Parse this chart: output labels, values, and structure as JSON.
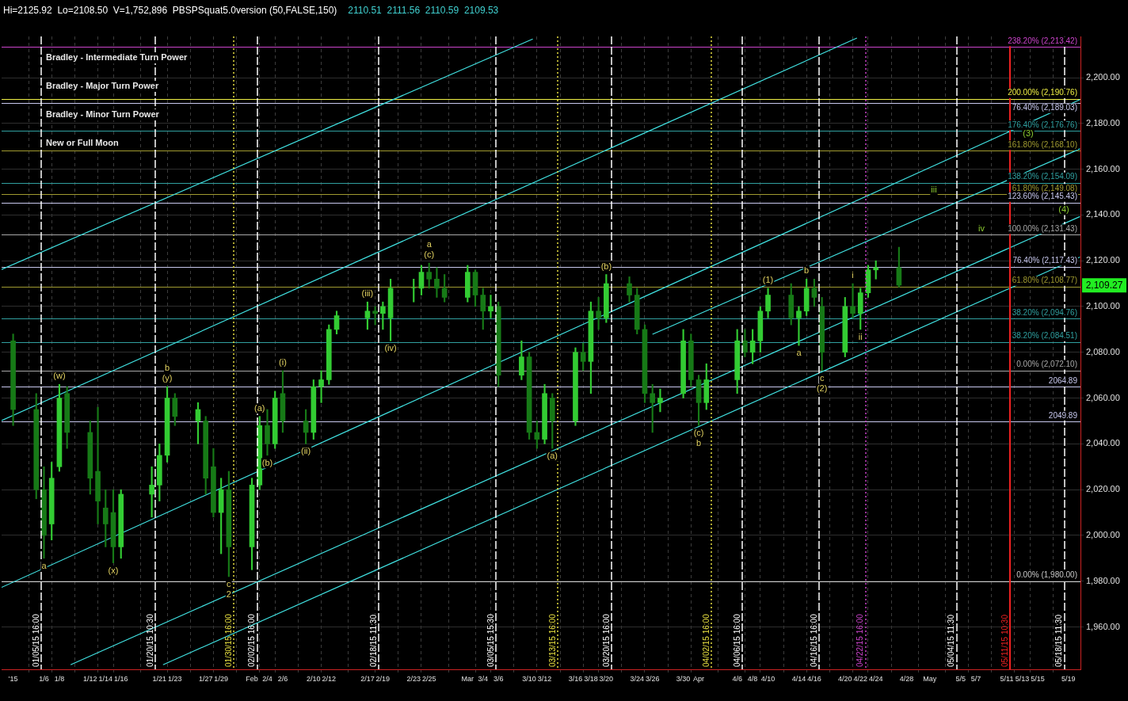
{
  "chart_data": {
    "type": "candlestick",
    "title": "Hi=2125.92  Lo=2108.50  V=1,752,896  PBSPSquat5.0version (50,FALSE,150)",
    "subtitle": "2110.51  2111.56  2110.59  2109.53",
    "xlim": [
      "2014-12-31T12:00",
      "2015-05-20T13:30"
    ],
    "xticks": [
      {
        "value": "2015-01-02",
        "label": "'15"
      },
      {
        "value": "2015-01-06",
        "label": "1/6"
      },
      {
        "value": "2015-01-08",
        "label": "1/8"
      },
      {
        "value": "2015-01-12",
        "label": "1/12"
      },
      {
        "value": "2015-01-14",
        "label": "1/14"
      },
      {
        "value": "2015-01-16",
        "label": "1/16"
      },
      {
        "value": "2015-01-21",
        "label": "1/21"
      },
      {
        "value": "2015-01-23",
        "label": "1/23"
      },
      {
        "value": "2015-01-27",
        "label": "1/27"
      },
      {
        "value": "2015-01-29",
        "label": "1/29"
      },
      {
        "value": "2015-02-02",
        "label": "Feb"
      },
      {
        "value": "2015-02-04",
        "label": "2/4"
      },
      {
        "value": "2015-02-06",
        "label": "2/6"
      },
      {
        "value": "2015-02-10",
        "label": "2/10"
      },
      {
        "value": "2015-02-12",
        "label": "2/12"
      },
      {
        "value": "2015-02-17",
        "label": "2/17"
      },
      {
        "value": "2015-02-19",
        "label": "2/19"
      },
      {
        "value": "2015-02-23",
        "label": "2/23"
      },
      {
        "value": "2015-02-25",
        "label": "2/25"
      },
      {
        "value": "2015-03-02",
        "label": "Mar"
      },
      {
        "value": "2015-03-04",
        "label": "3/4"
      },
      {
        "value": "2015-03-06",
        "label": "3/6"
      },
      {
        "value": "2015-03-10",
        "label": "3/10"
      },
      {
        "value": "2015-03-12",
        "label": "3/12"
      },
      {
        "value": "2015-03-16",
        "label": "3/16"
      },
      {
        "value": "2015-03-18",
        "label": "3/18"
      },
      {
        "value": "2015-03-20",
        "label": "3/20"
      },
      {
        "value": "2015-03-24",
        "label": "3/24"
      },
      {
        "value": "2015-03-26",
        "label": "3/26"
      },
      {
        "value": "2015-03-30",
        "label": "3/30"
      },
      {
        "value": "2015-04-01",
        "label": "Apr"
      },
      {
        "value": "2015-04-06",
        "label": "4/6"
      },
      {
        "value": "2015-04-08",
        "label": "4/8"
      },
      {
        "value": "2015-04-10",
        "label": "4/10"
      },
      {
        "value": "2015-04-14",
        "label": "4/14"
      },
      {
        "value": "2015-04-16",
        "label": "4/16"
      },
      {
        "value": "2015-04-20",
        "label": "4/20"
      },
      {
        "value": "2015-04-22",
        "label": "4/22"
      },
      {
        "value": "2015-04-24",
        "label": "4/24"
      },
      {
        "value": "2015-04-28",
        "label": "4/28"
      },
      {
        "value": "2015-05-01",
        "label": "May"
      },
      {
        "value": "2015-05-05",
        "label": "5/5"
      },
      {
        "value": "2015-05-07",
        "label": "5/7"
      },
      {
        "value": "2015-05-11",
        "label": "5/11"
      },
      {
        "value": "2015-05-13",
        "label": "5/13"
      },
      {
        "value": "2015-05-15",
        "label": "5/15"
      },
      {
        "value": "2015-05-19",
        "label": "5/19"
      }
    ],
    "ylim": [
      1941.5,
      2218
    ],
    "yticks": [
      {
        "value": 1960,
        "label": "1,960.00"
      },
      {
        "value": 1980,
        "label": "1,980.00"
      },
      {
        "value": 2000,
        "label": "2,000.00"
      },
      {
        "value": 2020,
        "label": "2,020.00"
      },
      {
        "value": 2040,
        "label": "2,040.00"
      },
      {
        "value": 2060,
        "label": "2,060.00"
      },
      {
        "value": 2080,
        "label": "2,080.00"
      },
      {
        "value": 2100,
        "label": "2,100.00"
      },
      {
        "value": 2120,
        "label": "2,120.00"
      },
      {
        "value": 2140,
        "label": "2,140.00"
      },
      {
        "value": 2160,
        "label": "2,160.00"
      },
      {
        "value": 2180,
        "label": "2,180.00"
      },
      {
        "value": 2200,
        "label": "2,200.00"
      }
    ],
    "grid": true,
    "series": [
      {
        "type": "line",
        "color": "#40e0e0",
        "x": [
          "2014-12-31T12:00",
          "2015-03-10T11:00"
        ],
        "values": [
          2116.2,
          2216.9
        ]
      },
      {
        "type": "line",
        "color": "#40e0e0",
        "x": [
          "2014-12-31T12:00",
          "2015-04-21T13:00"
        ],
        "values": [
          2050.2,
          2217.3
        ]
      },
      {
        "type": "line",
        "color": "#40e0e0",
        "x": [
          "2014-12-31T12:00",
          "2015-05-20T12:00"
        ],
        "values": [
          1977.3,
          2190.4
        ]
      },
      {
        "type": "line",
        "color": "#40e0e0",
        "x": [
          "2015-03-26",
          "2015-05-20T12:00"
        ],
        "values": [
          2087.9,
          2168.9
        ]
      },
      {
        "type": "line",
        "color": "#40e0e0",
        "x": [
          "2015-01-09T11:00",
          "2015-05-20T12:00"
        ],
        "values": [
          1943.5,
          2139.3
        ]
      },
      {
        "type": "line",
        "color": "#40e0e0",
        "x": [
          "2015-01-21T11:00",
          "2015-05-20T12:00"
        ],
        "values": [
          1943.5,
          2121.6
        ]
      },
      {
        "color": "#33cc33",
        "colors": [
          "#177a17",
          "#177a17",
          "#177a17",
          "#33cc33",
          "#33cc33",
          "#177a17",
          "#177a17",
          "#177a17",
          "#177a17",
          "#177a17",
          "#33cc33",
          "#33cc33",
          "#33cc33",
          "#33cc33",
          "#177a17",
          "#33cc33",
          "#177a17",
          "#177a17",
          "#33cc33",
          "#177a17",
          "#33cc33",
          "#33cc33",
          "#177a17",
          "#33cc33",
          "#177a17",
          "#177a17",
          "#33cc33",
          "#33cc33",
          "#33cc33",
          "#33cc33",
          "#33cc33",
          "#177a17",
          "#33cc33",
          "#33cc33",
          "#33cc33",
          "#33cc33",
          "#177a17",
          "#177a17",
          "#177a17",
          "#33cc33",
          "#177a17",
          "#177a17",
          "#33cc33",
          "#177a17",
          "#33cc33",
          "#177a17",
          "#177a17",
          "#33cc33",
          "#177a17",
          "#33cc33",
          "#177a17",
          "#33cc33",
          "#177a17",
          "#33cc33",
          "#177a17",
          "#177a17",
          "#177a17",
          "#177a17",
          "#33cc33",
          "#33cc33",
          "#177a17",
          "#177a17",
          "#33cc33",
          "#33cc33",
          "#177a17",
          "#33cc33",
          "#33cc33",
          "#33cc33",
          "#177a17",
          "#33cc33",
          "#33cc33",
          "#177a17",
          "#177a17",
          "#33cc33",
          "#177a17",
          "#33cc33",
          "#33cc33",
          "#33cc33",
          "#177a17"
        ],
        "x": [
          "2015-01-02",
          "2015-01-05",
          "2015-01-06",
          "2015-01-07",
          "2015-01-08",
          "2015-01-09",
          "2015-01-12",
          "2015-01-13",
          "2015-01-14",
          "2015-01-15",
          "2015-01-16",
          "2015-01-20",
          "2015-01-21",
          "2015-01-22",
          "2015-01-23",
          "2015-01-26",
          "2015-01-27",
          "2015-01-28",
          "2015-01-29",
          "2015-01-30",
          "2015-02-02",
          "2015-02-03",
          "2015-02-04",
          "2015-02-05",
          "2015-02-06",
          "2015-02-09",
          "2015-02-10",
          "2015-02-11",
          "2015-02-12",
          "2015-02-13",
          "2015-02-17",
          "2015-02-18",
          "2015-02-19",
          "2015-02-20",
          "2015-02-23",
          "2015-02-24",
          "2015-02-25",
          "2015-02-26",
          "2015-02-27",
          "2015-03-02",
          "2015-03-03",
          "2015-03-04",
          "2015-03-05",
          "2015-03-06",
          "2015-03-09",
          "2015-03-10",
          "2015-03-11",
          "2015-03-12",
          "2015-03-13",
          "2015-03-16",
          "2015-03-17",
          "2015-03-18",
          "2015-03-19",
          "2015-03-20",
          "2015-03-23",
          "2015-03-24",
          "2015-03-25",
          "2015-03-26",
          "2015-03-27",
          "2015-03-30",
          "2015-03-31",
          "2015-04-01",
          "2015-04-02",
          "2015-04-06",
          "2015-04-07",
          "2015-04-08",
          "2015-04-09",
          "2015-04-10",
          "2015-04-13",
          "2015-04-14",
          "2015-04-15",
          "2015-04-16",
          "2015-04-17",
          "2015-04-20",
          "2015-04-21",
          "2015-04-22",
          "2015-04-23",
          "2015-04-24",
          "2015-04-27"
        ],
        "ohlc": [
          [
            2085,
            2088,
            2048,
            2055
          ],
          [
            2055,
            2062,
            2016,
            2020
          ],
          [
            2020,
            2030,
            1990,
            2000
          ],
          [
            2005,
            2032,
            1998,
            2025
          ],
          [
            2030,
            2066,
            2028,
            2060
          ],
          [
            2062,
            2065,
            2038,
            2045
          ],
          [
            2045,
            2050,
            2018,
            2025
          ],
          [
            2028,
            2056,
            2005,
            2015
          ],
          [
            2012,
            2020,
            1995,
            2005
          ],
          [
            2010,
            2020,
            1988,
            1995
          ],
          [
            1995,
            2020,
            1990,
            2018
          ],
          [
            2018,
            2030,
            2008,
            2022
          ],
          [
            2022,
            2040,
            2015,
            2035
          ],
          [
            2035,
            2065,
            2032,
            2060
          ],
          [
            2060,
            2062,
            2048,
            2052
          ],
          [
            2050,
            2058,
            2040,
            2055
          ],
          [
            2050,
            2052,
            2018,
            2025
          ],
          [
            2030,
            2038,
            2008,
            2010
          ],
          [
            2010,
            2025,
            1992,
            2020
          ],
          [
            2020,
            2028,
            1982,
            1995
          ],
          [
            1995,
            2025,
            1985,
            2022
          ],
          [
            2022,
            2052,
            2020,
            2048
          ],
          [
            2048,
            2055,
            2035,
            2040
          ],
          [
            2040,
            2063,
            2038,
            2060
          ],
          [
            2062,
            2072,
            2045,
            2050
          ],
          [
            2050,
            2055,
            2040,
            2045
          ],
          [
            2045,
            2068,
            2042,
            2065
          ],
          [
            2065,
            2072,
            2058,
            2068
          ],
          [
            2068,
            2092,
            2066,
            2090
          ],
          [
            2090,
            2098,
            2088,
            2096
          ],
          [
            2095,
            2102,
            2090,
            2098
          ],
          [
            2098,
            2100,
            2092,
            2097
          ],
          [
            2097,
            2102,
            2090,
            2100
          ],
          [
            2095,
            2112,
            2085,
            2108
          ],
          [
            2108,
            2112,
            2102,
            2108
          ],
          [
            2108,
            2118,
            2105,
            2115
          ],
          [
            2115,
            2119,
            2108,
            2112
          ],
          [
            2112,
            2117,
            2104,
            2108
          ],
          [
            2108,
            2114,
            2102,
            2104
          ],
          [
            2104,
            2118,
            2102,
            2115
          ],
          [
            2115,
            2116,
            2100,
            2105
          ],
          [
            2105,
            2108,
            2090,
            2098
          ],
          [
            2098,
            2105,
            2095,
            2100
          ],
          [
            2100,
            2102,
            2065,
            2070
          ],
          [
            2070,
            2085,
            2068,
            2078
          ],
          [
            2078,
            2080,
            2042,
            2045
          ],
          [
            2045,
            2050,
            2038,
            2042
          ],
          [
            2042,
            2066,
            2040,
            2062
          ],
          [
            2060,
            2062,
            2038,
            2050
          ],
          [
            2050,
            2082,
            2048,
            2080
          ],
          [
            2080,
            2084,
            2072,
            2076
          ],
          [
            2076,
            2102,
            2062,
            2098
          ],
          [
            2098,
            2104,
            2090,
            2095
          ],
          [
            2095,
            2114,
            2093,
            2110
          ],
          [
            2110,
            2113,
            2102,
            2105
          ],
          [
            2105,
            2108,
            2088,
            2090
          ],
          [
            2090,
            2092,
            2058,
            2062
          ],
          [
            2062,
            2066,
            2045,
            2058
          ],
          [
            2058,
            2064,
            2054,
            2060
          ],
          [
            2062,
            2090,
            2060,
            2085
          ],
          [
            2085,
            2088,
            2065,
            2068
          ],
          [
            2068,
            2070,
            2048,
            2058
          ],
          [
            2058,
            2075,
            2055,
            2068
          ],
          [
            2068,
            2090,
            2062,
            2085
          ],
          [
            2085,
            2090,
            2078,
            2080
          ],
          [
            2080,
            2090,
            2075,
            2085
          ],
          [
            2085,
            2100,
            2080,
            2098
          ],
          [
            2098,
            2108,
            2095,
            2105
          ],
          [
            2105,
            2110,
            2092,
            2095
          ],
          [
            2095,
            2100,
            2083,
            2098
          ],
          [
            2098,
            2112,
            2096,
            2108
          ],
          [
            2108,
            2112,
            2100,
            2104
          ],
          [
            2100,
            2104,
            2072,
            2080
          ],
          [
            2080,
            2104,
            2078,
            2100
          ],
          [
            2100,
            2110,
            2095,
            2097
          ],
          [
            2097,
            2108,
            2090,
            2106
          ],
          [
            2106,
            2118,
            2104,
            2116
          ],
          [
            2116,
            2120,
            2112,
            2117
          ],
          [
            2117,
            2125.92,
            2108.5,
            2109.27
          ]
        ]
      }
    ],
    "ref_lines": [
      {
        "axis": "x",
        "value": "2015-01-05T16:00",
        "label": "01/05/15 16:00",
        "color": "#ffffff",
        "line_style": "dashed"
      },
      {
        "axis": "x",
        "value": "2015-01-20T10:30",
        "label": "01/20/15 10:30",
        "color": "#ffffff",
        "line_style": "dashed"
      },
      {
        "axis": "x",
        "value": "2015-01-30T16:00",
        "label": "01/30/15 16:00",
        "color": "#e8e040",
        "line_style": "dotted"
      },
      {
        "axis": "x",
        "value": "2015-02-02T16:00",
        "label": "02/02/15 16:00",
        "color": "#ffffff",
        "line_style": "dashed"
      },
      {
        "axis": "x",
        "value": "2015-02-18T11:30",
        "label": "02/18/15 11:30",
        "color": "#ffffff",
        "line_style": "dashed"
      },
      {
        "axis": "x",
        "value": "2015-03-05T15:30",
        "label": "03/05/15 15:30",
        "color": "#ffffff",
        "line_style": "dashed"
      },
      {
        "axis": "x",
        "value": "2015-03-13T16:00",
        "label": "03/13/15 16:00",
        "color": "#e8e040",
        "line_style": "dotted"
      },
      {
        "axis": "x",
        "value": "2015-03-20T16:00",
        "label": "03/20/15 16:00",
        "color": "#ffffff",
        "line_style": "dashed"
      },
      {
        "axis": "x",
        "value": "2015-04-02T16:00",
        "label": "04/02/15 16:00",
        "color": "#e8e040",
        "line_style": "dotted"
      },
      {
        "axis": "x",
        "value": "2015-04-06T16:00",
        "label": "04/06/15 16:00",
        "color": "#ffffff",
        "line_style": "dashed"
      },
      {
        "axis": "x",
        "value": "2015-04-16T16:00",
        "label": "04/16/15 16:00",
        "color": "#ffffff",
        "line_style": "dashed"
      },
      {
        "axis": "x",
        "value": "2015-04-22T16:00",
        "label": "04/22/15 16:00",
        "color": "#cc44cc",
        "line_style": "dotted"
      },
      {
        "axis": "x",
        "value": "2015-05-04T11:30",
        "label": "05/04/15 11:30",
        "color": "#ffffff",
        "line_style": "dashed"
      },
      {
        "axis": "x",
        "value": "2015-05-11T10:30",
        "label": "05/11/15 10:30",
        "color": "#ee2222",
        "line_style": "solid"
      },
      {
        "axis": "x",
        "value": "2015-05-18T11:30",
        "label": "05/18/15 11:30",
        "color": "#ffffff",
        "line_style": "dashed"
      },
      {
        "axis": "y",
        "value": 2213.42,
        "label": "238.20% (2,213.42)",
        "color": "#cc44cc"
      },
      {
        "axis": "y",
        "value": 2190.76,
        "label": "200.00% (2,190.76)",
        "color": "#eeee44"
      },
      {
        "axis": "y",
        "value": 2189.03,
        "label": "76.40% (2,189.03)",
        "color": "#c8c8ee"
      },
      {
        "axis": "y",
        "value": 2176.76,
        "label": "176.40% (2,176.76)",
        "color": "#30a0a0"
      },
      {
        "axis": "y",
        "value": 2168.1,
        "label": "161.80% (2,168.10)",
        "color": "#a09a30"
      },
      {
        "axis": "y",
        "value": 2154.09,
        "label": "138.20% (2,154.09)",
        "color": "#30a0a0"
      },
      {
        "axis": "y",
        "value": 2149.08,
        "label": "61.80% (2,149.08)",
        "color": "#a09a30"
      },
      {
        "axis": "y",
        "value": 2145.43,
        "label": "123.60% (2,145.43)",
        "color": "#c8c8ee"
      },
      {
        "axis": "y",
        "value": 2131.43,
        "label": "100.00% (2,131.43)",
        "color": "#a8a8a8"
      },
      {
        "axis": "y",
        "value": 2117.43,
        "label": "76.40% (2,117.43)",
        "color": "#c8c8ee"
      },
      {
        "axis": "y",
        "value": 2108.77,
        "label": "61.80% (2,108.77)",
        "color": "#a09a30"
      },
      {
        "axis": "y",
        "value": 2094.76,
        "label": "38.20% (2,094.76)",
        "color": "#30a0a0"
      },
      {
        "axis": "y",
        "value": 2084.51,
        "label": "38.20% (2,084.51)",
        "color": "#30a0a0"
      },
      {
        "axis": "y",
        "value": 2072.1,
        "label": "0.00% (2,072.10)",
        "color": "#a8a8a8"
      },
      {
        "axis": "y",
        "value": 2064.89,
        "label": "2064.89",
        "color": "#c8c8ee"
      },
      {
        "axis": "y",
        "value": 2049.89,
        "label": "2049.89",
        "color": "#c8c8ee"
      },
      {
        "axis": "y",
        "value": 1980,
        "label": "0.00% (1,980.00)",
        "color": "#c8c8c8"
      }
    ],
    "annotations": [
      "Bradley - Intermediate Turn Power",
      "Bradley - Major Turn Power",
      "Bradley - Minor Turn Power",
      "New or Full Moon",
      "2,109.27",
      "iii",
      "iv",
      "(3)",
      "(4)",
      {
        "text": "a",
        "x": "2015-01-06",
        "y": 1990
      },
      {
        "text": "(w)",
        "x": "2015-01-08",
        "y": 2066
      },
      {
        "text": "(x)",
        "x": "2015-01-15",
        "y": 1988
      },
      {
        "text": "(y)",
        "x": "2015-01-22",
        "y": 2065
      },
      {
        "text": "b",
        "x": "2015-01-22",
        "y": 2065
      },
      {
        "text": "c",
        "x": "2015-01-30",
        "y": 1982
      },
      {
        "text": "2",
        "x": "2015-01-30",
        "y": 1982
      },
      {
        "text": "(a)",
        "x": "2015-02-03",
        "y": 2052
      },
      {
        "text": "(b)",
        "x": "2015-02-04",
        "y": 2035
      },
      {
        "text": "(i)",
        "x": "2015-02-06",
        "y": 2072
      },
      {
        "text": "(ii)",
        "x": "2015-02-09",
        "y": 2040
      },
      {
        "text": "(iii)",
        "x": "2015-02-17",
        "y": 2102
      },
      {
        "text": "(iv)",
        "x": "2015-02-20",
        "y": 2085
      },
      {
        "text": "(c)",
        "x": "2015-02-25",
        "y": 2119
      },
      {
        "text": "a",
        "x": "2015-02-25",
        "y": 2119
      },
      {
        "text": "(a)",
        "x": "2015-03-13",
        "y": 2038
      },
      {
        "text": "(b)",
        "x": "2015-03-20",
        "y": 2114
      },
      {
        "text": "(c)",
        "x": "2015-04-01",
        "y": 2048
      },
      {
        "text": "b",
        "x": "2015-04-01",
        "y": 2048
      },
      {
        "text": "(1)",
        "x": "2015-04-10",
        "y": 2108
      },
      {
        "text": "a",
        "x": "2015-04-14",
        "y": 2083
      },
      {
        "text": "b",
        "x": "2015-04-15",
        "y": 2112
      },
      {
        "text": "c",
        "x": "2015-04-17",
        "y": 2072
      },
      {
        "text": "(2)",
        "x": "2015-04-17",
        "y": 2072
      },
      {
        "text": "i",
        "x": "2015-04-21",
        "y": 2110
      },
      {
        "text": "ii",
        "x": "2015-04-22",
        "y": 2090
      }
    ]
  }
}
